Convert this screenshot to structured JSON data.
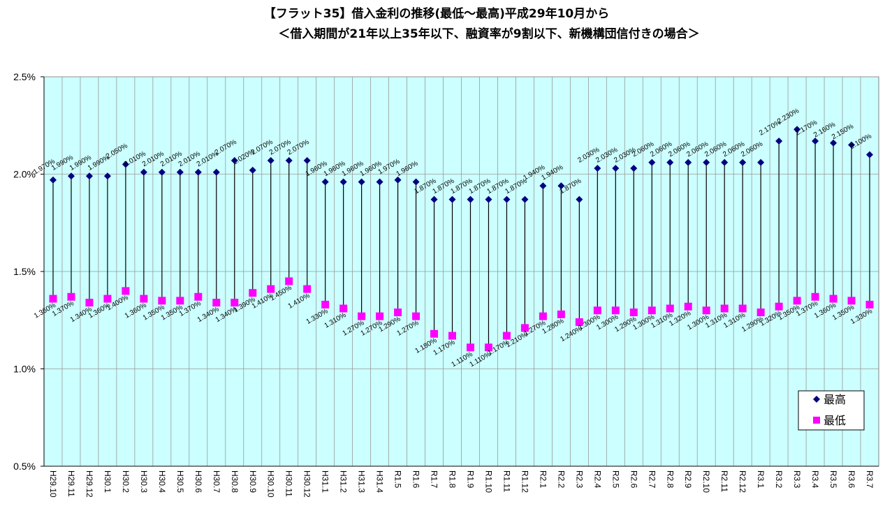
{
  "chart_data": {
    "type": "scatter",
    "title_line1": "【フラット35】借入金利の推移(最低～最高)平成29年10月から",
    "title_line2": "＜借入期間が21年以上35年以下、融資率が9割以下、新機構団信付きの場合＞",
    "y_ticks": [
      "0.5%",
      "1.0%",
      "1.5%",
      "2.0%",
      "2.5%"
    ],
    "ylim": [
      0.5,
      2.5
    ],
    "categories": [
      "H29.10",
      "H29.11",
      "H29.12",
      "H30.1",
      "H30.2",
      "H30.3",
      "H30.4",
      "H30.5",
      "H30.6",
      "H30.7",
      "H30.8",
      "H30.9",
      "H30.10",
      "H30.11",
      "H30.12",
      "H31.1",
      "H31.2",
      "H31.3",
      "H31.4",
      "R1.5",
      "R1.6",
      "R1.7",
      "R1.8",
      "R1.9",
      "R1.10",
      "R1.11",
      "R1.12",
      "R2.1",
      "R2.2",
      "R2.3",
      "R2.4",
      "R2.5",
      "R2.6",
      "R2.7",
      "R2.8",
      "R2.9",
      "R2.10",
      "R2.11",
      "R2.12",
      "R3.1",
      "R3.2",
      "R3.3",
      "R3.4",
      "R3.5",
      "R3.6",
      "R3.7"
    ],
    "series": [
      {
        "name": "最高",
        "color": "#000080",
        "marker": "diamond",
        "values": [
          1.97,
          1.99,
          1.99,
          1.99,
          2.05,
          2.01,
          2.01,
          2.01,
          2.01,
          2.01,
          2.07,
          2.02,
          2.07,
          2.07,
          2.07,
          1.96,
          1.96,
          1.96,
          1.96,
          1.97,
          1.96,
          1.87,
          1.87,
          1.87,
          1.87,
          1.87,
          1.87,
          1.94,
          1.94,
          1.87,
          2.03,
          2.03,
          2.03,
          2.06,
          2.06,
          2.06,
          2.06,
          2.06,
          2.06,
          2.06,
          2.17,
          2.23,
          2.17,
          2.16,
          2.15,
          2.1
        ],
        "labels": [
          "1.970%",
          "1.990%",
          "1.990%",
          "1.990%",
          "2.050%",
          "2.010%",
          "2.010%",
          "2.010%",
          "2.010%",
          "2.010%",
          "2.070%",
          "2.020%",
          "2.070%",
          "2.070%",
          "2.070%",
          "1.960%",
          "1.960%",
          "1.960%",
          "1.960%",
          "1.970%",
          "1.960%",
          "1.870%",
          "1.870%",
          "1.870%",
          "1.870%",
          "1.870%",
          "1.870%",
          "1.940%",
          "1.940%",
          "1.870%",
          "2.030%",
          "2.030%",
          "2.030%",
          "2.060%",
          "2.060%",
          "2.060%",
          "2.060%",
          "2.060%",
          "2.060%",
          "2.060%",
          "2.170%",
          "2.230%",
          "2.170%",
          "2.160%",
          "2.150%",
          "2.100%"
        ]
      },
      {
        "name": "最低",
        "color": "#FF00FF",
        "marker": "square",
        "values": [
          1.36,
          1.37,
          1.34,
          1.36,
          1.4,
          1.36,
          1.35,
          1.35,
          1.37,
          1.34,
          1.34,
          1.39,
          1.41,
          1.45,
          1.41,
          1.33,
          1.31,
          1.27,
          1.27,
          1.29,
          1.27,
          1.18,
          1.17,
          1.11,
          1.11,
          1.17,
          1.21,
          1.27,
          1.28,
          1.24,
          1.3,
          1.3,
          1.29,
          1.3,
          1.31,
          1.32,
          1.3,
          1.31,
          1.31,
          1.29,
          1.32,
          1.35,
          1.37,
          1.36,
          1.35,
          1.33
        ],
        "labels": [
          "1.360%",
          "1.370%",
          "1.340%",
          "1.360%",
          "1.400%",
          "1.360%",
          "1.350%",
          "1.350%",
          "1.370%",
          "1.340%",
          "1.340%",
          "1.390%",
          "1.410%",
          "1.450%",
          "1.410%",
          "1.330%",
          "1.310%",
          "1.270%",
          "1.270%",
          "1.290%",
          "1.270%",
          "1.180%",
          "1.170%",
          "1.110%",
          "1.110%",
          "1.170%",
          "1.210%",
          "1.270%",
          "1.280%",
          "1.240%",
          "1.300%",
          "1.300%",
          "1.290%",
          "1.300%",
          "1.310%",
          "1.320%",
          "1.300%",
          "1.310%",
          "1.310%",
          "1.290%",
          "1.320%",
          "1.350%",
          "1.370%",
          "1.360%",
          "1.350%",
          "1.330%"
        ]
      }
    ],
    "plot_background": "#CCFFFF",
    "grid": true,
    "legend_position": "bottom-right"
  }
}
